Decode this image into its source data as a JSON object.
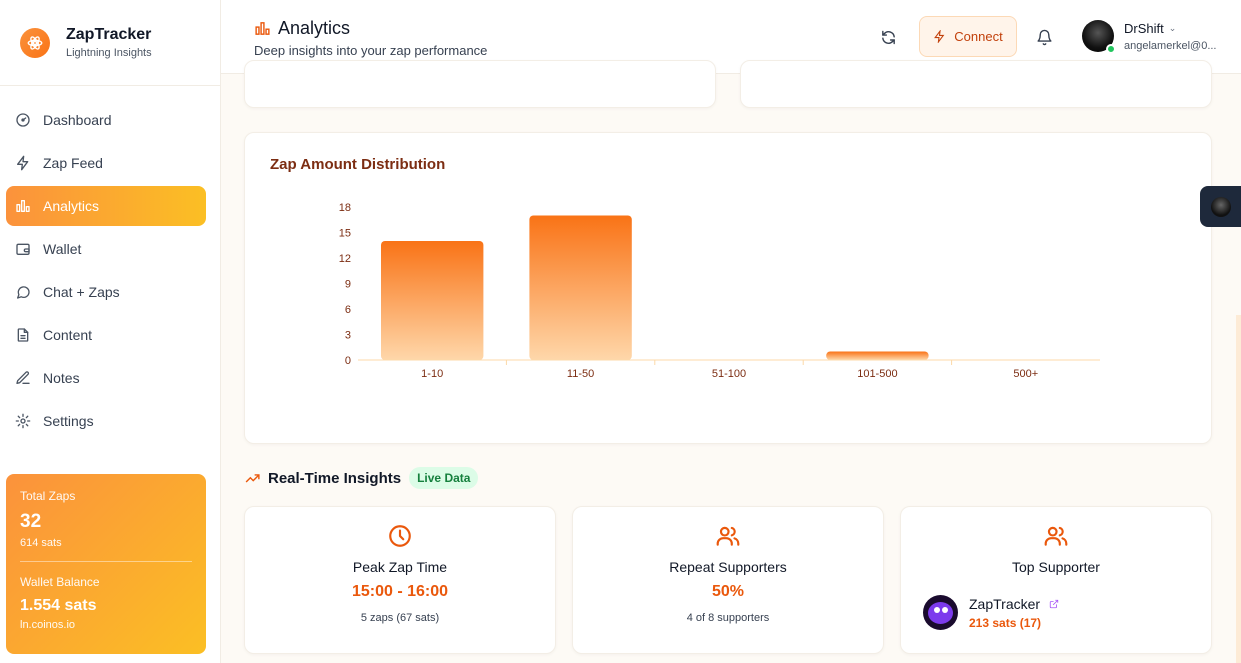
{
  "brand": {
    "name": "ZapTracker",
    "tagline": "Lightning Insights"
  },
  "nav": [
    {
      "label": "Dashboard",
      "icon": "gauge-icon",
      "active": false
    },
    {
      "label": "Zap Feed",
      "icon": "zap-icon",
      "active": false
    },
    {
      "label": "Analytics",
      "icon": "bar-chart-icon",
      "active": true
    },
    {
      "label": "Wallet",
      "icon": "wallet-icon",
      "active": false
    },
    {
      "label": "Chat + Zaps",
      "icon": "chat-icon",
      "active": false
    },
    {
      "label": "Content",
      "icon": "document-icon",
      "active": false
    },
    {
      "label": "Notes",
      "icon": "edit-icon",
      "active": false
    },
    {
      "label": "Settings",
      "icon": "gear-icon",
      "active": false
    }
  ],
  "stats": {
    "total_zaps_label": "Total Zaps",
    "total_zaps_value": "32",
    "total_zaps_sats": "614 sats",
    "wallet_label": "Wallet Balance",
    "wallet_value": "1.554 sats",
    "wallet_host": "ln.coinos.io"
  },
  "header": {
    "title": "Analytics",
    "subtitle": "Deep insights into your zap performance",
    "connect_label": "Connect",
    "user_name": "DrShift",
    "user_email": "angelamerkel@0..."
  },
  "chart_data": {
    "type": "bar",
    "title": "Zap Amount Distribution",
    "categories": [
      "1-10",
      "11-50",
      "51-100",
      "101-500",
      "500+"
    ],
    "values": [
      14,
      17,
      0,
      1,
      0
    ],
    "yticks": [
      0,
      3,
      6,
      9,
      12,
      15,
      18
    ],
    "ylim": [
      0,
      18
    ],
    "xlabel": "",
    "ylabel": "",
    "bar_color": "#f97316",
    "grid": false,
    "legend": false
  },
  "insights": {
    "title": "Real-Time Insights",
    "badge": "Live Data",
    "peak": {
      "label": "Peak Zap Time",
      "value": "15:00 - 16:00",
      "note": "5 zaps (67 sats)"
    },
    "repeat": {
      "label": "Repeat Supporters",
      "value": "50%",
      "note": "4 of 8 supporters"
    },
    "top": {
      "label": "Top Supporter",
      "name": "ZapTracker",
      "sats": "213 sats (17)"
    }
  }
}
